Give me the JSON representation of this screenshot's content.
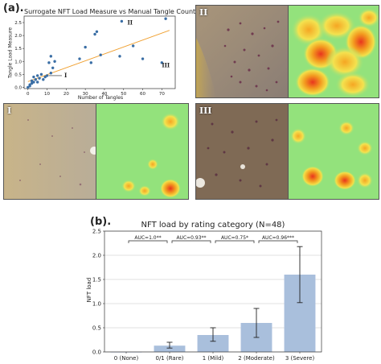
{
  "labels": {
    "panel_a": "(a).",
    "panel_b": "(b)."
  },
  "chart_data": [
    {
      "type": "scatter",
      "title": "Surrogate NFT Load Measure vs Manual Tangle Counts (N=48)",
      "xlabel": "Number of Tangles",
      "ylabel": "Tangle Load Measure",
      "xlim": [
        -2,
        77
      ],
      "ylim": [
        -0.05,
        2.75
      ],
      "xticks": [
        0,
        10,
        20,
        30,
        40,
        50,
        60,
        70
      ],
      "yticks": [
        0.0,
        0.5,
        1.0,
        1.5,
        2.0,
        2.5
      ],
      "grid": false,
      "point_color": "#3a6ea5",
      "fit_color": "#f0a030",
      "fit_line": {
        "x": [
          0,
          74
        ],
        "y": [
          0.22,
          2.2
        ]
      },
      "points": [
        {
          "x": 0,
          "y": 0.0
        },
        {
          "x": 1,
          "y": 0.05
        },
        {
          "x": 1,
          "y": 0.1
        },
        {
          "x": 2,
          "y": 0.15
        },
        {
          "x": 2,
          "y": 0.25
        },
        {
          "x": 3,
          "y": 0.2
        },
        {
          "x": 3,
          "y": 0.4
        },
        {
          "x": 4,
          "y": 0.3
        },
        {
          "x": 5,
          "y": 0.45
        },
        {
          "x": 5,
          "y": 0.2
        },
        {
          "x": 6,
          "y": 0.35
        },
        {
          "x": 7,
          "y": 0.5
        },
        {
          "x": 8,
          "y": 0.3
        },
        {
          "x": 9,
          "y": 0.4
        },
        {
          "x": 10,
          "y": 0.45
        },
        {
          "x": 11,
          "y": 0.95
        },
        {
          "x": 12,
          "y": 0.55
        },
        {
          "x": 12,
          "y": 1.2
        },
        {
          "x": 13,
          "y": 0.75
        },
        {
          "x": 14,
          "y": 1.0
        },
        {
          "x": 27,
          "y": 1.1
        },
        {
          "x": 30,
          "y": 1.55
        },
        {
          "x": 33,
          "y": 0.95
        },
        {
          "x": 35,
          "y": 2.05
        },
        {
          "x": 36,
          "y": 2.15
        },
        {
          "x": 38,
          "y": 1.25
        },
        {
          "x": 48,
          "y": 1.2
        },
        {
          "x": 49,
          "y": 2.55
        },
        {
          "x": 55,
          "y": 1.6
        },
        {
          "x": 60,
          "y": 1.1
        },
        {
          "x": 70,
          "y": 0.95
        },
        {
          "x": 72,
          "y": 2.65
        }
      ],
      "annotations": [
        {
          "text": "I",
          "x": 10,
          "y": 0.45,
          "label_x": 19,
          "label_y": 0.45
        },
        {
          "text": "II",
          "x": 49,
          "y": 2.55,
          "label_x": 52,
          "label_y": 2.48
        },
        {
          "text": "III",
          "x": 70,
          "y": 0.95,
          "label_x": 70,
          "label_y": 0.83
        }
      ]
    },
    {
      "type": "bar",
      "title": "NFT load by rating category (N=48)",
      "xlabel": "",
      "ylabel": "NFT load",
      "ylim": [
        0,
        2.5
      ],
      "yticks": [
        0.0,
        0.5,
        1.0,
        1.5,
        2.0,
        2.5
      ],
      "grid": true,
      "bar_color": "#a9bfdc",
      "categories": [
        "0 (None)",
        "0/1 (Rare)",
        "1 (Mild)",
        "2 (Moderate)",
        "3 (Severe)"
      ],
      "values": [
        0.0,
        0.13,
        0.35,
        0.6,
        1.6
      ],
      "error_low": [
        0.0,
        0.08,
        0.22,
        0.3,
        1.02
      ],
      "error_high": [
        0.0,
        0.2,
        0.5,
        0.9,
        2.18
      ],
      "comparisons": [
        {
          "from": 0,
          "to": 1,
          "label": "AUC=1.0**"
        },
        {
          "from": 1,
          "to": 2,
          "label": "AUC=0.93**"
        },
        {
          "from": 2,
          "to": 3,
          "label": "AUC=0.75*"
        },
        {
          "from": 3,
          "to": 4,
          "label": "AUC=0.96***"
        }
      ]
    }
  ],
  "image_panels": [
    {
      "label": "II"
    },
    {
      "label": "I"
    },
    {
      "label": "III"
    }
  ]
}
